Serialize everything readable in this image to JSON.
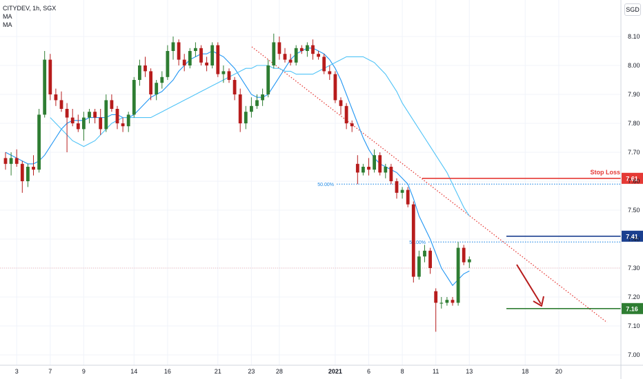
{
  "legend": {
    "symbol": "CITYDEV, 1h, SGX",
    "ma1": "MA",
    "ma2": "MA"
  },
  "currency": "SGD",
  "chart_data": {
    "type": "candlestick",
    "symbol": "CITYDEV",
    "interval": "1h",
    "exchange": "SGX",
    "currency": "SGD",
    "ylim": [
      6.99,
      8.13
    ],
    "y_ticks": [
      7.0,
      7.1,
      7.2,
      7.3,
      7.4,
      7.5,
      7.6,
      7.7,
      7.8,
      7.9,
      8.0,
      8.1
    ],
    "y_tick_labels": [
      "7.00",
      "7.10",
      "7.20",
      "7.30",
      "7.40",
      "7.50",
      "7.60",
      "7.70",
      "7.80",
      "7.90",
      "8.00",
      "8.10"
    ],
    "x_tick_labels": [
      "3",
      "7",
      "9",
      "14",
      "16",
      "21",
      "23",
      "28",
      "2021",
      "6",
      "8",
      "11",
      "13",
      "18",
      "20"
    ],
    "x_tick_index": [
      2,
      8,
      14,
      23,
      29,
      38,
      44,
      49,
      59,
      65,
      71,
      77,
      83,
      93,
      99
    ],
    "candles": [
      [
        7.68,
        7.7,
        7.64,
        7.66
      ],
      [
        7.66,
        7.7,
        7.62,
        7.68
      ],
      [
        7.68,
        7.71,
        7.65,
        7.66
      ],
      [
        7.66,
        7.67,
        7.56,
        7.6
      ],
      [
        7.6,
        7.66,
        7.58,
        7.65
      ],
      [
        7.65,
        7.69,
        7.62,
        7.64
      ],
      [
        7.64,
        7.85,
        7.63,
        7.83
      ],
      [
        7.83,
        8.05,
        7.82,
        8.02
      ],
      [
        8.02,
        8.04,
        7.88,
        7.9
      ],
      [
        7.9,
        7.92,
        7.86,
        7.88
      ],
      [
        7.88,
        7.91,
        7.84,
        7.85
      ],
      [
        7.85,
        7.87,
        7.7,
        7.82
      ],
      [
        7.82,
        7.85,
        7.79,
        7.8
      ],
      [
        7.8,
        7.83,
        7.77,
        7.78
      ],
      [
        7.78,
        7.84,
        7.74,
        7.82
      ],
      [
        7.82,
        7.85,
        7.8,
        7.84
      ],
      [
        7.84,
        7.85,
        7.8,
        7.82
      ],
      [
        7.82,
        7.85,
        7.76,
        7.78
      ],
      [
        7.78,
        7.9,
        7.77,
        7.88
      ],
      [
        7.88,
        7.9,
        7.84,
        7.85
      ],
      [
        7.85,
        7.86,
        7.78,
        7.8
      ],
      [
        7.8,
        7.82,
        7.77,
        7.79
      ],
      [
        7.79,
        7.84,
        7.77,
        7.83
      ],
      [
        7.83,
        7.96,
        7.82,
        7.95
      ],
      [
        7.95,
        8.02,
        7.93,
        8.0
      ],
      [
        8.0,
        8.03,
        7.96,
        7.98
      ],
      [
        7.98,
        7.99,
        7.88,
        7.9
      ],
      [
        7.9,
        7.95,
        7.88,
        7.94
      ],
      [
        7.94,
        7.98,
        7.92,
        7.96
      ],
      [
        7.96,
        8.07,
        7.95,
        8.05
      ],
      [
        8.05,
        8.1,
        8.02,
        8.08
      ],
      [
        8.08,
        8.09,
        8.0,
        8.02
      ],
      [
        8.02,
        8.04,
        7.98,
        8.0
      ],
      [
        8.0,
        8.06,
        7.99,
        8.05
      ],
      [
        8.05,
        8.08,
        8.03,
        8.06
      ],
      [
        8.06,
        8.07,
        8.0,
        8.01
      ],
      [
        8.01,
        8.03,
        7.98,
        8.0
      ],
      [
        8.0,
        8.08,
        7.99,
        8.07
      ],
      [
        8.07,
        8.08,
        7.96,
        7.97
      ],
      [
        7.97,
        8.0,
        7.94,
        7.98
      ],
      [
        7.98,
        7.99,
        7.94,
        7.95
      ],
      [
        7.95,
        7.96,
        7.88,
        7.9
      ],
      [
        7.9,
        7.92,
        7.77,
        7.8
      ],
      [
        7.8,
        7.86,
        7.78,
        7.84
      ],
      [
        7.84,
        7.89,
        7.82,
        7.86
      ],
      [
        7.86,
        7.9,
        7.85,
        7.88
      ],
      [
        7.88,
        7.92,
        7.86,
        7.9
      ],
      [
        7.9,
        8.02,
        7.89,
        8.0
      ],
      [
        8.0,
        8.11,
        7.99,
        8.08
      ],
      [
        8.08,
        8.1,
        8.02,
        8.04
      ],
      [
        8.04,
        8.06,
        8.01,
        8.02
      ],
      [
        8.02,
        8.04,
        8.0,
        8.01
      ],
      [
        8.01,
        8.07,
        8.0,
        8.06
      ],
      [
        8.06,
        8.07,
        8.04,
        8.05
      ],
      [
        8.05,
        8.08,
        8.03,
        8.07
      ],
      [
        8.07,
        8.09,
        8.02,
        8.04
      ],
      [
        8.04,
        8.05,
        8.02,
        8.03
      ],
      [
        8.03,
        8.04,
        7.97,
        7.98
      ],
      [
        7.98,
        8.0,
        7.95,
        7.97
      ],
      [
        7.97,
        7.98,
        7.87,
        7.88
      ],
      [
        7.88,
        7.89,
        7.83,
        7.86
      ],
      [
        7.86,
        7.87,
        7.78,
        7.8
      ],
      [
        7.8,
        7.81,
        7.77,
        7.79
      ],
      [
        7.66,
        7.69,
        7.59,
        7.63
      ],
      [
        7.63,
        7.66,
        7.62,
        7.65
      ],
      [
        7.65,
        7.68,
        7.62,
        7.64
      ],
      [
        7.64,
        7.71,
        7.63,
        7.69
      ],
      [
        7.69,
        7.7,
        7.62,
        7.63
      ],
      [
        7.63,
        7.66,
        7.61,
        7.65
      ],
      [
        7.65,
        7.66,
        7.59,
        7.6
      ],
      [
        7.6,
        7.61,
        7.54,
        7.56
      ],
      [
        7.56,
        7.58,
        7.54,
        7.57
      ],
      [
        7.57,
        7.58,
        7.51,
        7.52
      ],
      [
        7.52,
        7.53,
        7.25,
        7.27
      ],
      [
        7.27,
        7.36,
        7.26,
        7.34
      ],
      [
        7.34,
        7.38,
        7.32,
        7.36
      ],
      [
        7.36,
        7.37,
        7.28,
        7.3
      ],
      [
        7.22,
        7.23,
        7.08,
        7.18
      ],
      [
        7.18,
        7.2,
        7.16,
        7.18
      ],
      [
        7.18,
        7.2,
        7.17,
        7.19
      ],
      [
        7.19,
        7.2,
        7.17,
        7.18
      ],
      [
        7.18,
        7.39,
        7.17,
        7.37
      ],
      [
        7.37,
        7.38,
        7.31,
        7.32
      ],
      [
        7.32,
        7.34,
        7.3,
        7.33
      ]
    ],
    "moving_averages": [
      {
        "name": "MA",
        "color": "#2196f3",
        "values": [
          7.7,
          7.69,
          7.68,
          7.67,
          7.66,
          7.66,
          7.67,
          7.69,
          7.72,
          7.75,
          7.78,
          7.8,
          7.81,
          7.81,
          7.81,
          7.82,
          7.82,
          7.82,
          7.82,
          7.83,
          7.83,
          7.82,
          7.82,
          7.83,
          7.85,
          7.87,
          7.89,
          7.9,
          7.91,
          7.93,
          7.95,
          7.98,
          8.0,
          8.02,
          8.03,
          8.04,
          8.04,
          8.05,
          8.04,
          8.03,
          8.01,
          7.99,
          7.96,
          7.93,
          7.9,
          7.89,
          7.89,
          7.9,
          7.93,
          7.96,
          7.99,
          8.02,
          8.04,
          8.05,
          8.06,
          8.06,
          8.05,
          8.04,
          8.02,
          7.99,
          7.95,
          7.9,
          7.85,
          7.8,
          7.75,
          7.71,
          7.68,
          7.66,
          7.65,
          7.64,
          7.63,
          7.61,
          7.59,
          7.54,
          7.48,
          7.44,
          7.4,
          7.35,
          7.3,
          7.27,
          7.24,
          7.26,
          7.28,
          7.29
        ]
      },
      {
        "name": "MA",
        "color": "#4fc3f7",
        "values": [
          7.82,
          7.8,
          7.78,
          7.76,
          7.74,
          7.73,
          7.72,
          7.73,
          7.74,
          7.76,
          7.78,
          7.8,
          7.81,
          7.82,
          7.82,
          7.82,
          7.82,
          7.82,
          7.82,
          7.83,
          7.84,
          7.85,
          7.86,
          7.87,
          7.88,
          7.89,
          7.9,
          7.91,
          7.92,
          7.93,
          7.94,
          7.95,
          7.96,
          7.97,
          7.98,
          7.99,
          7.99,
          8.0,
          8.0,
          8.0,
          7.99,
          7.99,
          7.98,
          7.98,
          7.97,
          7.97,
          7.97,
          7.97,
          7.98,
          7.99,
          8.0,
          8.01,
          8.02,
          8.03,
          8.03,
          8.03,
          8.03,
          8.02,
          8.01,
          7.99,
          7.97,
          7.94,
          7.91,
          7.87,
          7.84,
          7.81,
          7.78,
          7.75,
          7.72,
          7.69,
          7.66,
          7.63,
          7.59,
          7.55,
          7.51,
          7.48
        ]
      }
    ],
    "annotations": {
      "stop_loss_label": "Stop Loss",
      "stop_loss_price": 7.61,
      "stop_loss_tag": "7.61",
      "entry_price": 7.41,
      "entry_tag": "7.41",
      "target_price": 7.16,
      "target_tag": "7.16",
      "fib_upper_label": "50.00%",
      "fib_upper_price": 7.59,
      "fib_lower_label": "50.00%",
      "fib_lower_price": 7.39,
      "current_price_level": 7.3
    },
    "colors": {
      "up": "#26a69a",
      "up_fill": "#2e7d32",
      "down": "#b71c1c",
      "stop_loss": "#e53935",
      "entry": "#1a3f8f",
      "target": "#2e7d32",
      "fib": "#1e88e5",
      "trendline": "#e53935",
      "arrow": "#b71c1c"
    }
  }
}
